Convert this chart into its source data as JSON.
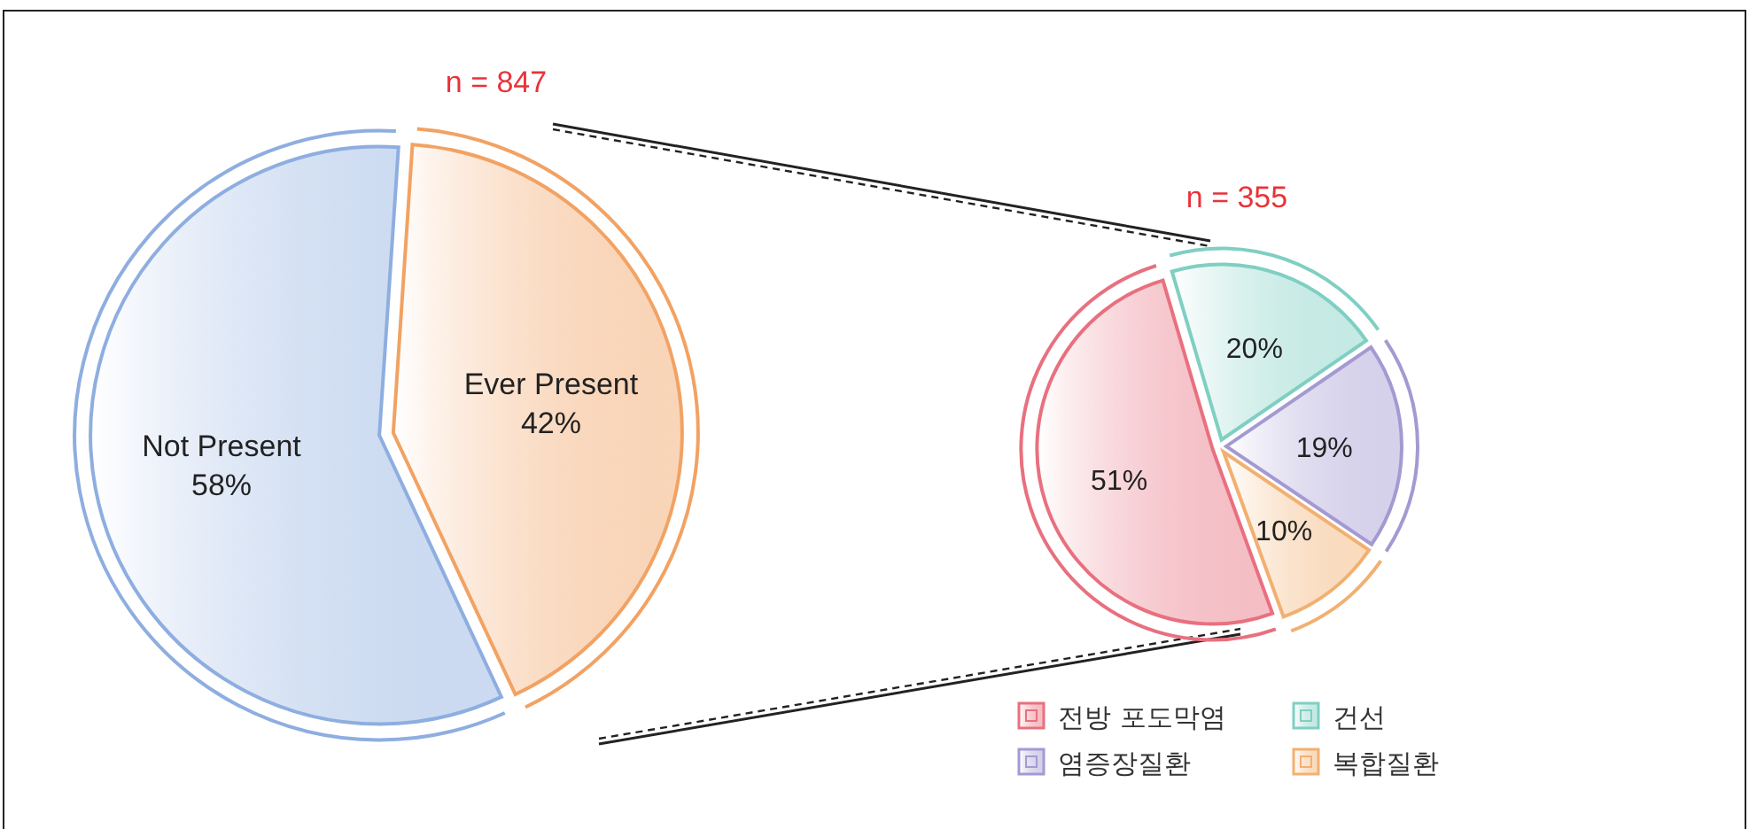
{
  "chart_data": [
    {
      "type": "pie",
      "title": "n = 847",
      "categories": [
        "Not Present",
        "Ever Present"
      ],
      "values": [
        58,
        42
      ],
      "colors": [
        "#8eaee0",
        "#f2a263"
      ],
      "value_labels": [
        "58%",
        "42%"
      ],
      "legend": false
    },
    {
      "type": "pie",
      "title": "n = 355",
      "categories": [
        "전방 포도막염",
        "건선",
        "염증장질환",
        "복합질환"
      ],
      "values": [
        51,
        20,
        19,
        10
      ],
      "colors": [
        "#e8707f",
        "#7fcfc2",
        "#a49ad2",
        "#f2b070"
      ],
      "value_labels": [
        "51%",
        "20%",
        "19%",
        "10%"
      ],
      "legend": "bottom right"
    }
  ]
}
